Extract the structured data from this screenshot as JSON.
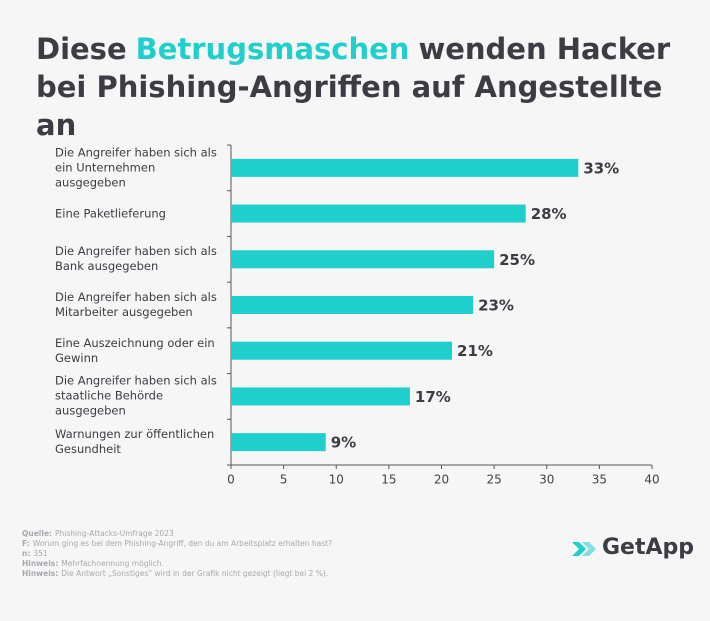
{
  "chart_data": {
    "type": "bar",
    "orientation": "horizontal",
    "title_parts": [
      "Diese",
      "Betrugsmaschen",
      "wenden Hacker bei Phishing-Angriffen auf Angestellte an"
    ],
    "title_highlight": 1,
    "categories": [
      "Die Angreifer haben sich als ein Unternehmen ausgegeben",
      "Eine Paketlieferung",
      "Die Angreifer haben sich als Bank ausgegeben",
      "Die Angreifer haben sich als Mitarbeiter ausgegeben",
      "Eine Auszeichnung oder ein Gewinn",
      "Die Angreifer haben sich als staatliche Behörde ausgegeben",
      "Warnungen zur öffentlichen Gesundheit"
    ],
    "values": [
      33,
      28,
      25,
      23,
      21,
      17,
      9
    ],
    "value_labels": [
      "33%",
      "28%",
      "25%",
      "23%",
      "21%",
      "17%",
      "9%"
    ],
    "color": "#1fcfcb",
    "xlim": [
      0,
      40
    ],
    "xticks": [
      0,
      5,
      10,
      15,
      20,
      25,
      30,
      35,
      40
    ],
    "notes": [
      {
        "label": "Quelle:",
        "text": "Phishing-Attacks-Umfrage 2023"
      },
      {
        "label": "F:",
        "text": "Worum ging es bei dem Phishing-Angriff, den du am Arbeitsplatz erhalten hast?"
      },
      {
        "label": "n:",
        "text": "351"
      },
      {
        "label": "Hinweis:",
        "text": "Mehrfachnennung möglich."
      },
      {
        "label": "Hinweis:",
        "text": "Die Antwort „Sonstiges“ wird in der Grafik nicht gezeigt (liegt bei 2 %)."
      }
    ],
    "logo": "GetApp"
  }
}
